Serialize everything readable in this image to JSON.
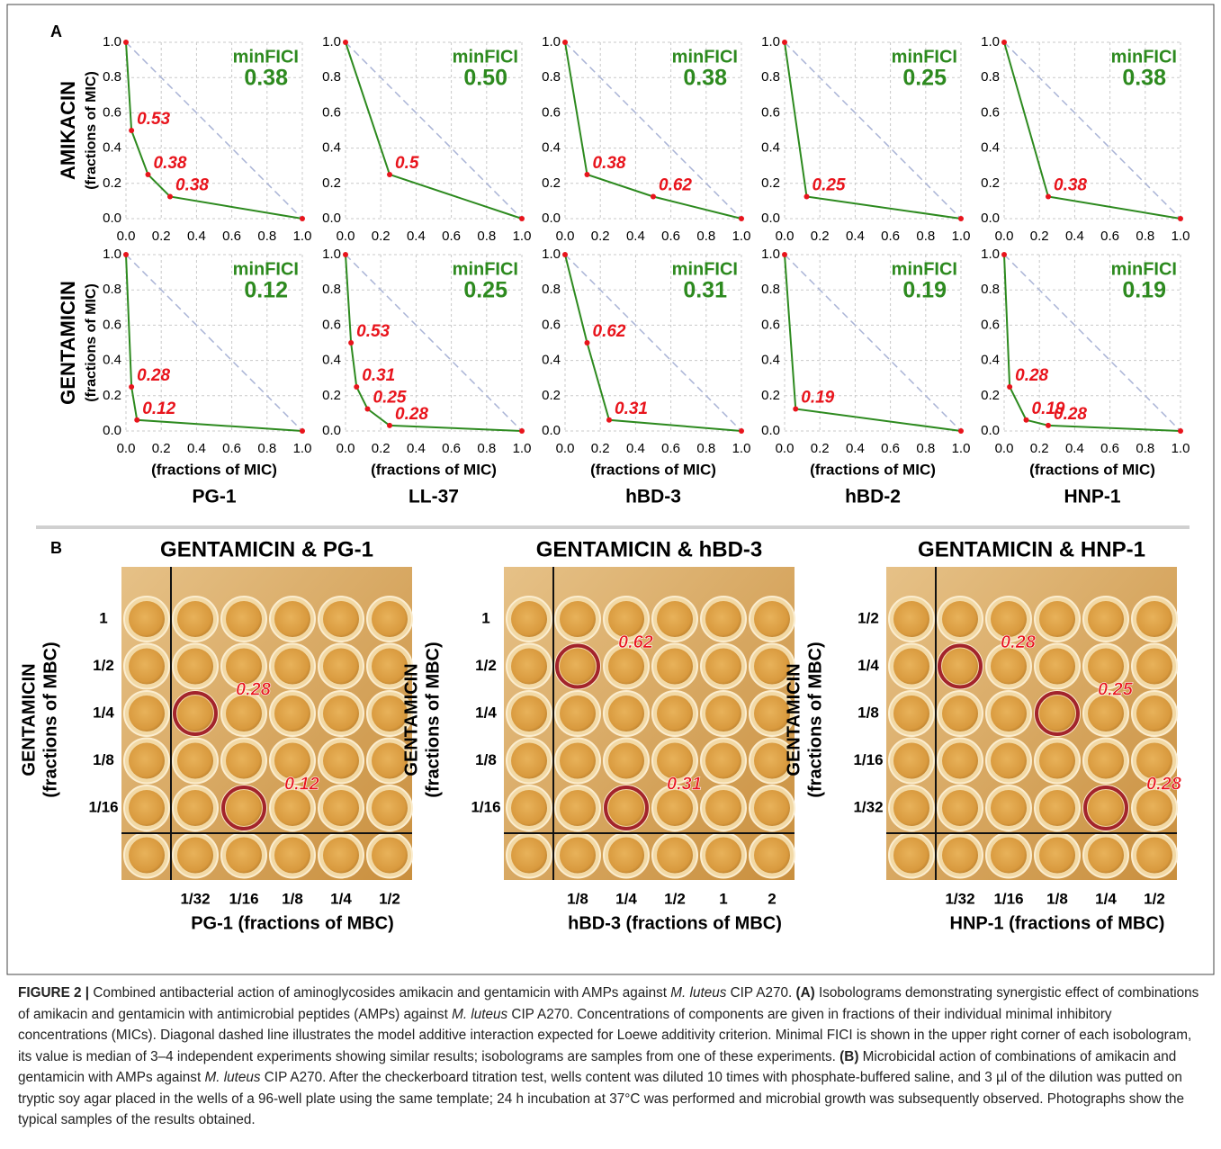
{
  "panel_a": {
    "label": "A",
    "xlim": [
      0,
      1
    ],
    "ylim": [
      0,
      1
    ],
    "ticks": [
      {
        "value": 0,
        "label": "0.0"
      },
      {
        "value": 0.2,
        "label": "0.2"
      },
      {
        "value": 0.4,
        "label": "0.4"
      },
      {
        "value": 0.6,
        "label": "0.6"
      },
      {
        "value": 0.8,
        "label": "0.8"
      },
      {
        "value": 1,
        "label": "1.0"
      }
    ],
    "grid": true,
    "diagonal": true,
    "line_color": "#2d8a1f",
    "point_color": "#e8141c",
    "label_color": "#e8141c",
    "annotation_color": "#2d8a1f",
    "row_titles": [
      "AMIKACIN",
      "GENTAMICIN"
    ],
    "y_axis_label": "(fractions of MIC)",
    "x_axis_label": "(fractions of MIC)",
    "column_titles": [
      "PG-1",
      "LL-37",
      "hBD-3",
      "hBD-2",
      "HNP-1"
    ],
    "annotation_title": "minFICI",
    "charts": [
      {
        "type": "line",
        "min_fici": "0.38",
        "x": [
          0,
          0.03125,
          0.125,
          0.25,
          1
        ],
        "y": [
          1,
          0.5,
          0.25,
          0.125,
          0
        ],
        "value_labels": [
          null,
          "0.53",
          "0.38",
          "0.38",
          null
        ]
      },
      {
        "type": "line",
        "min_fici": "0.50",
        "x": [
          0,
          0.25,
          1
        ],
        "y": [
          1,
          0.25,
          0
        ],
        "value_labels": [
          null,
          "0.5",
          null
        ]
      },
      {
        "type": "line",
        "min_fici": "0.38",
        "x": [
          0,
          0.125,
          0.5,
          1
        ],
        "y": [
          1,
          0.25,
          0.125,
          0
        ],
        "value_labels": [
          null,
          "0.38",
          "0.62",
          null
        ]
      },
      {
        "type": "line",
        "min_fici": "0.25",
        "x": [
          0,
          0.125,
          1
        ],
        "y": [
          1,
          0.125,
          0
        ],
        "value_labels": [
          null,
          "0.25",
          null
        ]
      },
      {
        "type": "line",
        "min_fici": "0.38",
        "x": [
          0,
          0.25,
          1
        ],
        "y": [
          1,
          0.125,
          0
        ],
        "value_labels": [
          null,
          "0.38",
          null
        ]
      },
      {
        "type": "line",
        "min_fici": "0.12",
        "x": [
          0,
          0.03125,
          0.0625,
          1
        ],
        "y": [
          1,
          0.25,
          0.0625,
          0
        ],
        "value_labels": [
          null,
          "0.28",
          "0.12",
          null
        ]
      },
      {
        "type": "line",
        "min_fici": "0.25",
        "x": [
          0,
          0.03125,
          0.0625,
          0.125,
          0.25,
          1
        ],
        "y": [
          1,
          0.5,
          0.25,
          0.125,
          0.03125,
          0
        ],
        "value_labels": [
          null,
          "0.53",
          "0.31",
          "0.25",
          "0.28",
          null
        ]
      },
      {
        "type": "line",
        "min_fici": "0.31",
        "x": [
          0,
          0.125,
          0.25,
          1
        ],
        "y": [
          1,
          0.5,
          0.0625,
          0
        ],
        "value_labels": [
          null,
          "0.62",
          "0.31",
          null
        ]
      },
      {
        "type": "line",
        "min_fici": "0.19",
        "x": [
          0,
          0.0625,
          1
        ],
        "y": [
          1,
          0.125,
          0
        ],
        "value_labels": [
          null,
          "0.19",
          null
        ]
      },
      {
        "type": "line",
        "min_fici": "0.19",
        "x": [
          0,
          0.03125,
          0.125,
          0.25,
          1
        ],
        "y": [
          1,
          0.25,
          0.0625,
          0.03125,
          0
        ],
        "value_labels": [
          null,
          "0.28",
          "0.19",
          "0.28",
          null
        ]
      }
    ]
  },
  "panel_b": {
    "label": "B",
    "y_axis_title": "GENTAMICIN",
    "y_axis_unit": "(fractions of MBC)",
    "plates": [
      {
        "title": "GENTAMICIN & PG-1",
        "rows": [
          "1",
          "1/2",
          "1/4",
          "1/8",
          "1/16"
        ],
        "columns": [
          "1/32",
          "1/16",
          "1/8",
          "1/4",
          "1/2"
        ],
        "x_axis_label": "PG-1 (fractions of MBC)",
        "hits": [
          {
            "label": "0.28"
          },
          {
            "label": "0.12"
          }
        ]
      },
      {
        "title": "GENTAMICIN & hBD-3",
        "rows": [
          "1",
          "1/2",
          "1/4",
          "1/8",
          "1/16"
        ],
        "columns": [
          "1/8",
          "1/4",
          "1/2",
          "1",
          "2"
        ],
        "x_axis_label": "hBD-3 (fractions of MBC)",
        "hits": [
          {
            "label": "0.62"
          },
          {
            "label": "0.31"
          }
        ]
      },
      {
        "title": "GENTAMICIN & HNP-1",
        "rows": [
          "1/2",
          "1/4",
          "1/8",
          "1/16",
          "1/32"
        ],
        "columns": [
          "1/32",
          "1/16",
          "1/8",
          "1/4",
          "1/2"
        ],
        "x_axis_label": "HNP-1 (fractions of MBC)",
        "hits": [
          {
            "label": "0.28"
          },
          {
            "label": "0.25"
          },
          {
            "label": "0.28"
          }
        ]
      }
    ]
  },
  "caption": {
    "segments": [
      {
        "text": "FIGURE 2 |",
        "style": "bold"
      },
      {
        "text": " Combined antibacterial action of aminoglycosides amikacin and gentamicin with AMPs against ",
        "style": "normal"
      },
      {
        "text": "M. luteus",
        "style": "italic"
      },
      {
        "text": " CIP A270. ",
        "style": "normal"
      },
      {
        "text": "(A)",
        "style": "bold"
      },
      {
        "text": " Isobolograms demonstrating synergistic effect of combinations of amikacin and gentamicin with antimicrobial peptides (AMPs) against ",
        "style": "normal"
      },
      {
        "text": "M. luteus",
        "style": "italic"
      },
      {
        "text": " CIP A270. Concentrations of components are given in fractions of their individual minimal inhibitory concentrations (MICs). Diagonal dashed line illustrates the model additive interaction expected for Loewe additivity criterion. Minimal FICI is shown in the upper right corner of each isobologram, its value is median of 3–4 independent experiments showing similar results; isobolograms are samples from one of these experiments. ",
        "style": "normal"
      },
      {
        "text": "(B)",
        "style": "bold"
      },
      {
        "text": " Microbicidal action of combinations of amikacin and gentamicin with AMPs against ",
        "style": "normal"
      },
      {
        "text": "M. luteus",
        "style": "italic"
      },
      {
        "text": " CIP A270. After the checkerboard titration test, wells content was diluted 10 times with phosphate-buffered saline, and 3 µl of the dilution was putted on tryptic soy agar placed in the wells of a 96-well plate using the same template; 24 h incubation at 37°C was performed and microbial growth was subsequently observed. Photographs show the typical samples of the results obtained.",
        "style": "normal"
      }
    ]
  }
}
